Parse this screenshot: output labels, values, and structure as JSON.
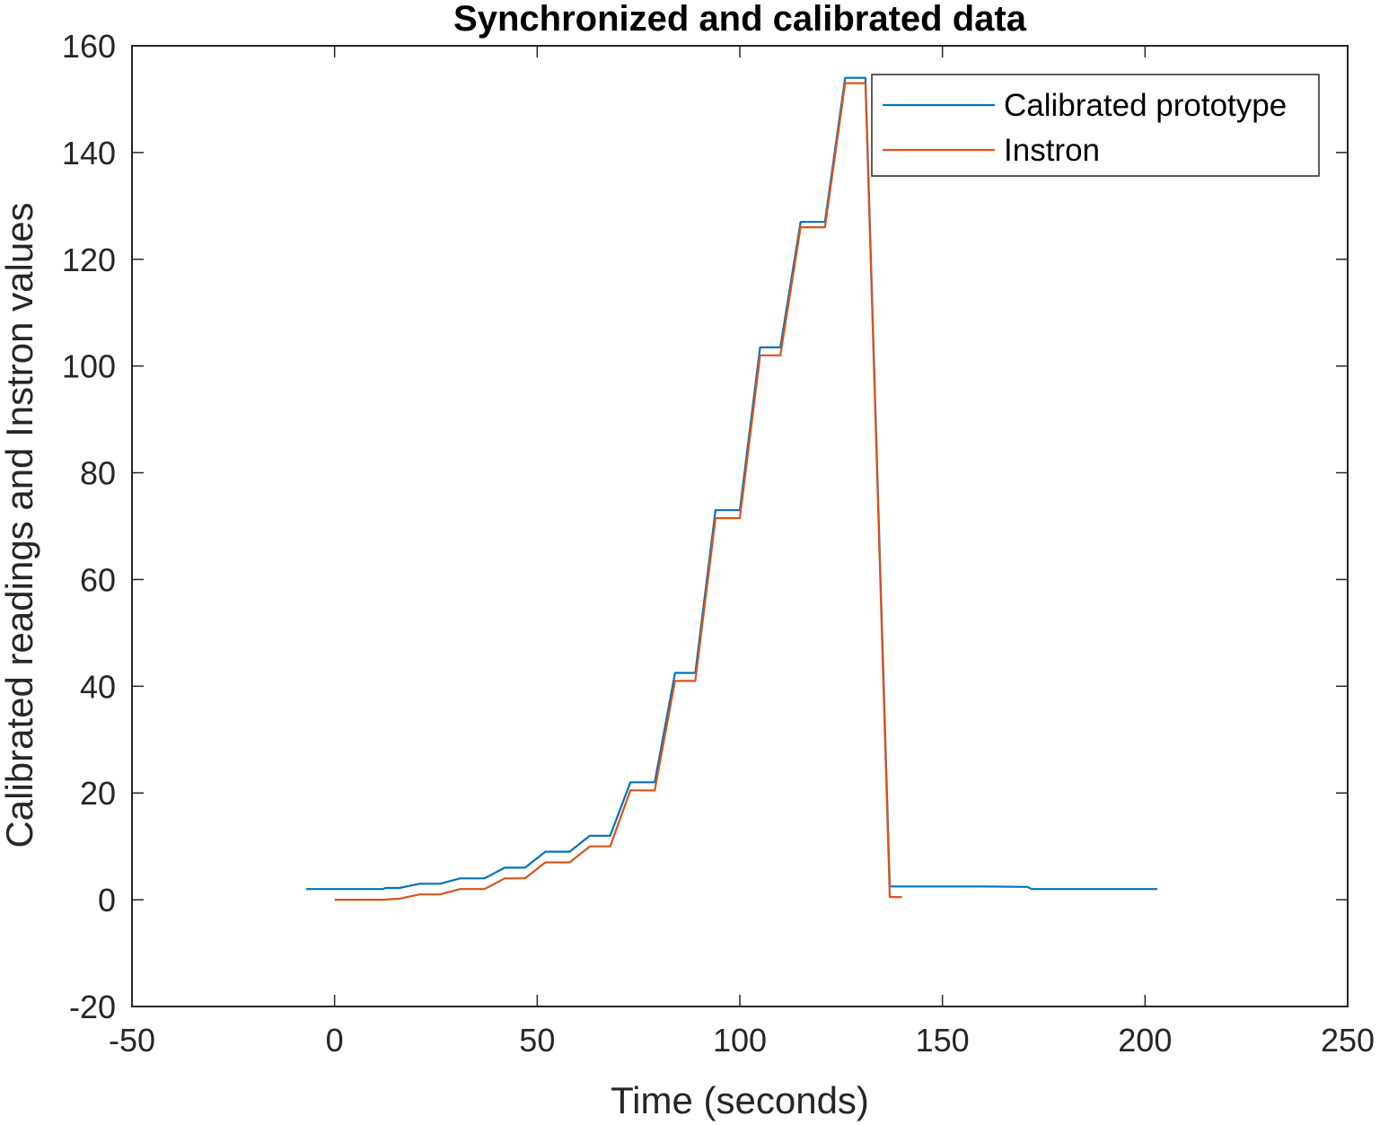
{
  "chart_data": {
    "type": "line",
    "title": "Synchronized and calibrated data",
    "xlabel": "Time (seconds)",
    "ylabel": "Calibrated readings and Instron values",
    "xlim": [
      -50,
      250
    ],
    "ylim": [
      -20,
      160
    ],
    "xticks": [
      -50,
      0,
      50,
      100,
      150,
      200,
      250
    ],
    "yticks": [
      -20,
      0,
      20,
      40,
      60,
      80,
      100,
      120,
      140,
      160
    ],
    "xtick_labels": [
      "-50",
      "0",
      "50",
      "100",
      "150",
      "200",
      "250"
    ],
    "ytick_labels": [
      "-20",
      "0",
      "20",
      "40",
      "60",
      "80",
      "100",
      "120",
      "140",
      "160"
    ],
    "grid": false,
    "legend_position": "top-right",
    "series": [
      {
        "name": "Calibrated prototype",
        "color": "#0072BD",
        "x": [
          -7,
          12,
          12.5,
          16,
          21,
          26,
          31,
          37,
          42,
          47,
          52,
          58,
          63,
          68,
          73,
          79,
          84,
          89,
          94,
          100,
          105,
          110,
          115,
          121,
          126,
          131,
          137,
          160,
          171,
          172,
          203
        ],
        "y": [
          2,
          2,
          2.2,
          2.2,
          3,
          3,
          4,
          4,
          6,
          6,
          9,
          9,
          12,
          12,
          22,
          22,
          42.5,
          42.5,
          73,
          73,
          103.5,
          103.5,
          127,
          127,
          154,
          154,
          2.5,
          2.5,
          2.4,
          2,
          2
        ]
      },
      {
        "name": "Instron",
        "color": "#D95319",
        "x": [
          0,
          12,
          16,
          21,
          26,
          31,
          37,
          42,
          47,
          52,
          58,
          63,
          68,
          73,
          79,
          84,
          89,
          94,
          100,
          105,
          110,
          115,
          121,
          126,
          131,
          137,
          140
        ],
        "y": [
          0,
          0,
          0.2,
          1,
          1,
          2,
          2,
          4,
          4,
          7,
          7,
          10,
          10,
          20.5,
          20.5,
          41,
          41,
          71.5,
          71.5,
          102,
          102,
          126,
          126,
          153,
          153,
          0.5,
          0.5
        ]
      }
    ]
  }
}
